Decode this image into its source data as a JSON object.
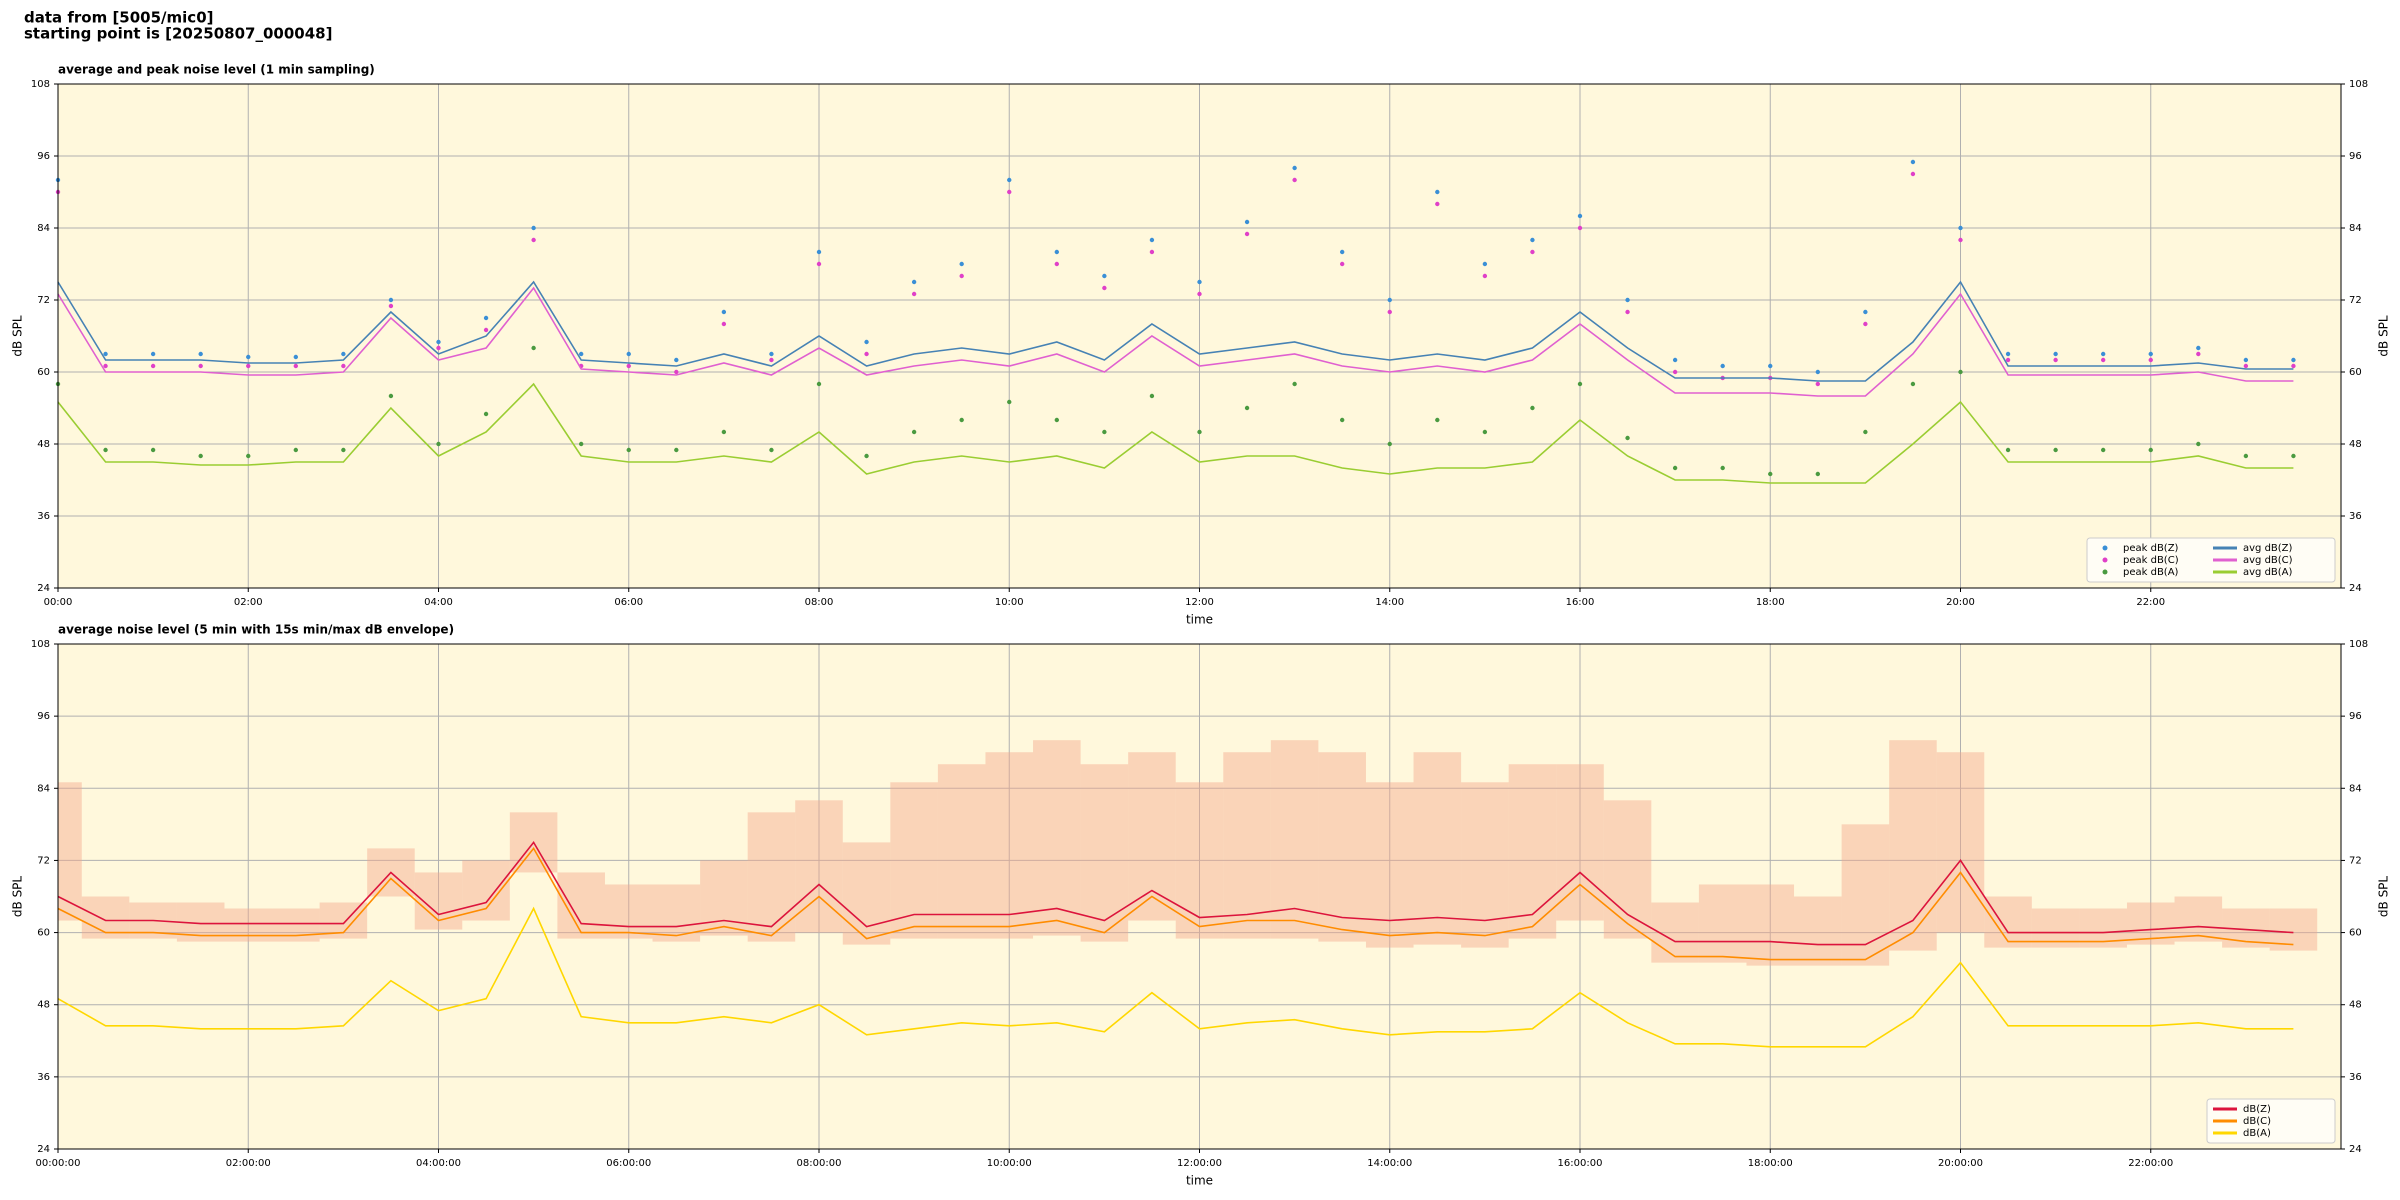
{
  "header": {
    "line1": "data from [5005/mic0]",
    "line2": "starting point is [20250807_000048]"
  },
  "chart_data": [
    {
      "type": "line",
      "title": "average and peak noise level (1 min sampling)",
      "x_label": "time",
      "y_label": "dB SPL",
      "x": [
        0,
        0.5,
        1,
        1.5,
        2,
        2.5,
        3,
        3.5,
        4,
        4.5,
        5,
        5.5,
        6,
        6.5,
        7,
        7.5,
        8,
        8.5,
        9,
        9.5,
        10,
        10.5,
        11,
        11.5,
        12,
        12.5,
        13,
        13.5,
        14,
        14.5,
        15,
        15.5,
        16,
        16.5,
        17,
        17.5,
        18,
        18.5,
        19,
        19.5,
        20,
        20.5,
        21,
        21.5,
        22,
        22.5,
        23,
        23.5
      ],
      "xlim": [
        0,
        24
      ],
      "xticks": [
        {
          "value": 0,
          "label": "00:00"
        },
        {
          "value": 2,
          "label": "02:00"
        },
        {
          "value": 4,
          "label": "04:00"
        },
        {
          "value": 6,
          "label": "06:00"
        },
        {
          "value": 8,
          "label": "08:00"
        },
        {
          "value": 10,
          "label": "10:00"
        },
        {
          "value": 12,
          "label": "12:00"
        },
        {
          "value": 14,
          "label": "14:00"
        },
        {
          "value": 16,
          "label": "16:00"
        },
        {
          "value": 18,
          "label": "18:00"
        },
        {
          "value": 20,
          "label": "20:00"
        },
        {
          "value": 22,
          "label": "22:00"
        }
      ],
      "ylim": [
        24,
        108
      ],
      "yticks": [
        24,
        36,
        48,
        60,
        72,
        84,
        96,
        108
      ],
      "grid": true,
      "legend": "lower right",
      "legend_columns": 2,
      "series": [
        {
          "name": "peak dB(Z)",
          "type": "scatter",
          "color": "#3a8fd6",
          "values": [
            92,
            63,
            63,
            63,
            62.5,
            62.5,
            63,
            72,
            65,
            69,
            84,
            63,
            63,
            62,
            70,
            63,
            80,
            65,
            75,
            78,
            92,
            80,
            76,
            82,
            75,
            85,
            94,
            80,
            72,
            90,
            78,
            82,
            86,
            72,
            62,
            61,
            61,
            60,
            70,
            95,
            84,
            63,
            63,
            63,
            63,
            64,
            62,
            62
          ]
        },
        {
          "name": "peak dB(C)",
          "type": "scatter",
          "color": "#e040c8",
          "values": [
            90,
            61,
            61,
            61,
            61,
            61,
            61,
            71,
            64,
            67,
            82,
            61,
            61,
            60,
            68,
            62,
            78,
            63,
            73,
            76,
            90,
            78,
            74,
            80,
            73,
            83,
            92,
            78,
            70,
            88,
            76,
            80,
            84,
            70,
            60,
            59,
            59,
            58,
            68,
            93,
            82,
            62,
            62,
            62,
            62,
            63,
            61,
            61
          ]
        },
        {
          "name": "peak dB(A)",
          "type": "scatter",
          "color": "#4a9a40",
          "values": [
            58,
            47,
            47,
            46,
            46,
            47,
            47,
            56,
            48,
            53,
            64,
            48,
            47,
            47,
            50,
            47,
            58,
            46,
            50,
            52,
            55,
            52,
            50,
            56,
            50,
            54,
            58,
            52,
            48,
            52,
            50,
            54,
            58,
            49,
            44,
            44,
            43,
            43,
            50,
            58,
            60,
            47,
            47,
            47,
            47,
            48,
            46,
            46
          ]
        },
        {
          "name": "avg dB(Z)",
          "type": "line",
          "color": "#4682b4",
          "values": [
            75,
            62,
            62,
            62,
            61.5,
            61.5,
            62,
            70,
            63,
            66,
            75,
            62,
            61.5,
            61,
            63,
            61,
            66,
            61,
            63,
            64,
            63,
            65,
            62,
            68,
            63,
            64,
            65,
            63,
            62,
            63,
            62,
            64,
            70,
            64,
            59,
            59,
            59,
            58.5,
            58.5,
            65,
            75,
            61,
            61,
            61,
            61,
            61.5,
            60.5,
            60.5
          ]
        },
        {
          "name": "avg dB(C)",
          "type": "line",
          "color": "#e060d0",
          "values": [
            73,
            60,
            60,
            60,
            59.5,
            59.5,
            60,
            69,
            62,
            64,
            74,
            60.5,
            60,
            59.5,
            61.5,
            59.5,
            64,
            59.5,
            61,
            62,
            61,
            63,
            60,
            66,
            61,
            62,
            63,
            61,
            60,
            61,
            60,
            62,
            68,
            62,
            56.5,
            56.5,
            56.5,
            56,
            56,
            63,
            73,
            59.5,
            59.5,
            59.5,
            59.5,
            60,
            58.5,
            58.5
          ]
        },
        {
          "name": "avg dB(A)",
          "type": "line",
          "color": "#9acd32",
          "values": [
            55,
            45,
            45,
            44.5,
            44.5,
            45,
            45,
            54,
            46,
            50,
            58,
            46,
            45,
            45,
            46,
            45,
            50,
            43,
            45,
            46,
            45,
            46,
            44,
            50,
            45,
            46,
            46,
            44,
            43,
            44,
            44,
            45,
            52,
            46,
            42,
            42,
            41.5,
            41.5,
            41.5,
            48,
            55,
            45,
            45,
            45,
            45,
            46,
            44,
            44
          ]
        }
      ]
    },
    {
      "type": "line",
      "title": "average noise level (5 min with 15s min/max dB envelope)",
      "x_label": "time",
      "y_label": "dB SPL",
      "x": [
        0,
        0.5,
        1,
        1.5,
        2,
        2.5,
        3,
        3.5,
        4,
        4.5,
        5,
        5.5,
        6,
        6.5,
        7,
        7.5,
        8,
        8.5,
        9,
        9.5,
        10,
        10.5,
        11,
        11.5,
        12,
        12.5,
        13,
        13.5,
        14,
        14.5,
        15,
        15.5,
        16,
        16.5,
        17,
        17.5,
        18,
        18.5,
        19,
        19.5,
        20,
        20.5,
        21,
        21.5,
        22,
        22.5,
        23,
        23.5
      ],
      "xlim": [
        0,
        24
      ],
      "xticks": [
        {
          "value": 0,
          "label": "00:00:00"
        },
        {
          "value": 2,
          "label": "02:00:00"
        },
        {
          "value": 4,
          "label": "04:00:00"
        },
        {
          "value": 6,
          "label": "06:00:00"
        },
        {
          "value": 8,
          "label": "08:00:00"
        },
        {
          "value": 10,
          "label": "10:00:00"
        },
        {
          "value": 12,
          "label": "12:00:00"
        },
        {
          "value": 14,
          "label": "14:00:00"
        },
        {
          "value": 16,
          "label": "16:00:00"
        },
        {
          "value": 18,
          "label": "18:00:00"
        },
        {
          "value": 20,
          "label": "20:00:00"
        },
        {
          "value": 22,
          "label": "22:00:00"
        }
      ],
      "ylim": [
        24,
        108
      ],
      "yticks": [
        24,
        36,
        48,
        60,
        72,
        84,
        96,
        108
      ],
      "grid": true,
      "legend": "lower right",
      "legend_columns": 1,
      "envelope": {
        "color": "#f4a88c",
        "upper": [
          85,
          66,
          65,
          65,
          64,
          64,
          65,
          74,
          70,
          72,
          80,
          70,
          68,
          68,
          72,
          80,
          82,
          75,
          85,
          88,
          90,
          92,
          88,
          90,
          85,
          90,
          92,
          90,
          85,
          90,
          85,
          88,
          88,
          82,
          65,
          68,
          68,
          66,
          78,
          92,
          90,
          66,
          64,
          64,
          65,
          66,
          64,
          64
        ],
        "lower": [
          62,
          59,
          59,
          58.5,
          58.5,
          58.5,
          59,
          66,
          60.5,
          62,
          70,
          59,
          59,
          58.5,
          59.5,
          58.5,
          60,
          58,
          59,
          59,
          59,
          59.5,
          58.5,
          62,
          59,
          59,
          59,
          58.5,
          57.5,
          58,
          57.5,
          59,
          62,
          59,
          55,
          55,
          54.5,
          54.5,
          54.5,
          57,
          60,
          57.5,
          57.5,
          57.5,
          58,
          58.5,
          57.5,
          57
        ]
      },
      "series": [
        {
          "name": "dB(Z)",
          "type": "line",
          "color": "#dc143c",
          "values": [
            66,
            62,
            62,
            61.5,
            61.5,
            61.5,
            61.5,
            70,
            63,
            65,
            75,
            61.5,
            61,
            61,
            62,
            61,
            68,
            61,
            63,
            63,
            63,
            64,
            62,
            67,
            62.5,
            63,
            64,
            62.5,
            62,
            62.5,
            62,
            63,
            70,
            63,
            58.5,
            58.5,
            58.5,
            58,
            58,
            62,
            72,
            60,
            60,
            60,
            60.5,
            61,
            60.5,
            60
          ]
        },
        {
          "name": "dB(C)",
          "type": "line",
          "color": "#ff8c00",
          "values": [
            64,
            60,
            60,
            59.5,
            59.5,
            59.5,
            60,
            69,
            62,
            64,
            74,
            60,
            60,
            59.5,
            61,
            59.5,
            66,
            59,
            61,
            61,
            61,
            62,
            60,
            66,
            61,
            62,
            62,
            60.5,
            59.5,
            60,
            59.5,
            61,
            68,
            61.5,
            56,
            56,
            55.5,
            55.5,
            55.5,
            60,
            70,
            58.5,
            58.5,
            58.5,
            59,
            59.5,
            58.5,
            58
          ]
        },
        {
          "name": "dB(A)",
          "type": "line",
          "color": "#ffd700",
          "values": [
            49,
            44.5,
            44.5,
            44,
            44,
            44,
            44.5,
            52,
            47,
            49,
            64,
            46,
            45,
            45,
            46,
            45,
            48,
            43,
            44,
            45,
            44.5,
            45,
            43.5,
            50,
            44,
            45,
            45.5,
            44,
            43,
            43.5,
            43.5,
            44,
            50,
            45,
            41.5,
            41.5,
            41,
            41,
            41,
            46,
            55,
            44.5,
            44.5,
            44.5,
            44.5,
            45,
            44,
            44
          ]
        }
      ]
    }
  ]
}
